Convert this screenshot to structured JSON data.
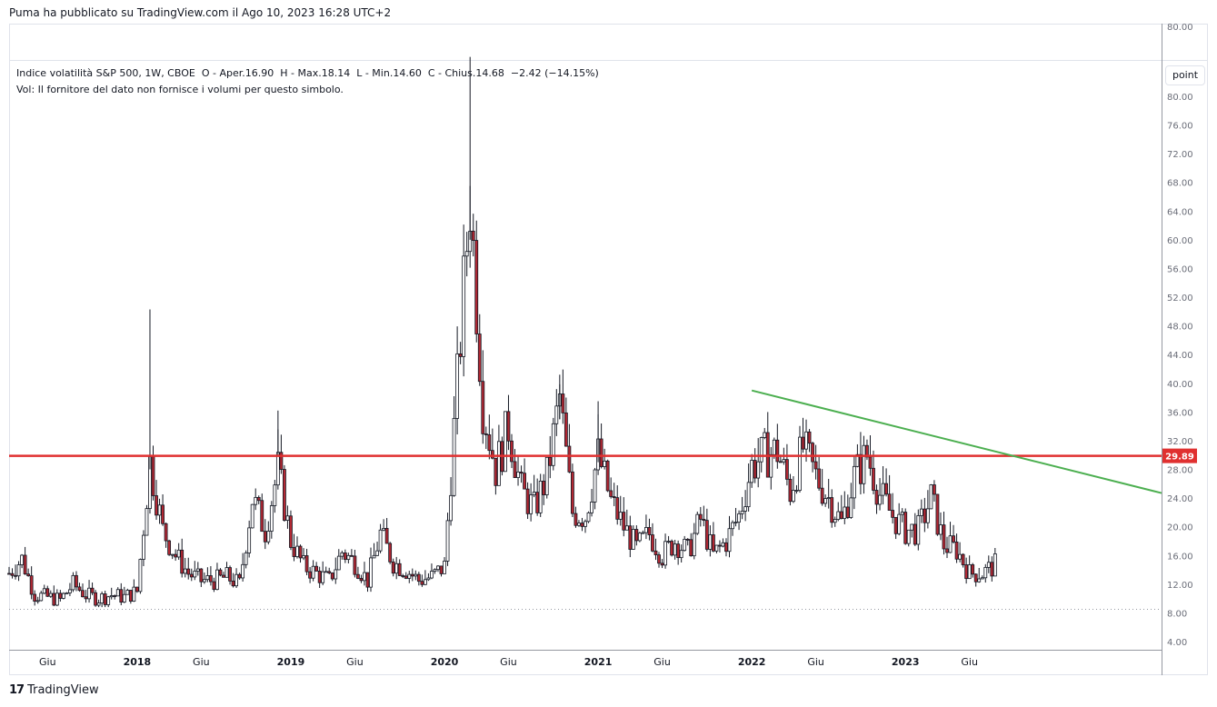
{
  "header": {
    "published_text": "Puma ha pubblicato su TradingView.com il Ago 10, 2023 16:28 UTC+2"
  },
  "legend": {
    "symbol": "Indice volatilità S&P 500, 1W, CBOE",
    "open_label": "O - Aper.",
    "open_value": "16.90",
    "high_label": "H - Max.",
    "high_value": "18.14",
    "low_label": "L - Min.",
    "low_value": "14.60",
    "close_label": "C - Chius.",
    "close_value": "14.68",
    "change": "−2.42",
    "change_pct": "(−14.15%)",
    "volume_note": "Vol: Il fornitore del dato non fornisce i volumi per questo simbolo."
  },
  "toolbar": {
    "scale_button": "point"
  },
  "footer": {
    "logo_mark": "17",
    "logo_text": "TradingView"
  },
  "colors": {
    "up": "#26a69a",
    "candle_body": "#131722",
    "down_fill": "#b22833",
    "up_fill": "#ffffff",
    "support_line": "#e03030",
    "trend_line": "#4caf50",
    "price_badge": "#e03030"
  },
  "chart_data": {
    "type": "candlestick",
    "title": "Indice volatilità S&P 500, 1W, CBOE",
    "y_axis": {
      "ticks": [
        "80.00",
        "76.00",
        "72.00",
        "68.00",
        "64.00",
        "60.00",
        "56.00",
        "52.00",
        "48.00",
        "44.00",
        "40.00",
        "36.00",
        "32.00",
        "28.00",
        "24.00",
        "20.00",
        "16.00",
        "12.00",
        "8.00",
        "4.00"
      ],
      "tick_values": [
        80,
        76,
        72,
        68,
        64,
        60,
        56,
        52,
        48,
        44,
        40,
        36,
        32,
        28,
        24,
        20,
        16,
        12,
        8,
        4
      ],
      "range": [
        4,
        80
      ]
    },
    "upper_pane_tick": "80.00",
    "x_axis": {
      "ticks": [
        {
          "label": "Giu",
          "year": false,
          "date": "2017-06"
        },
        {
          "label": "2018",
          "year": true,
          "date": "2018-01"
        },
        {
          "label": "Giu",
          "year": false,
          "date": "2018-06"
        },
        {
          "label": "2019",
          "year": true,
          "date": "2019-01"
        },
        {
          "label": "Giu",
          "year": false,
          "date": "2019-06"
        },
        {
          "label": "2020",
          "year": true,
          "date": "2020-01"
        },
        {
          "label": "Giu",
          "year": false,
          "date": "2020-06"
        },
        {
          "label": "2021",
          "year": true,
          "date": "2021-01"
        },
        {
          "label": "Giu",
          "year": false,
          "date": "2021-06"
        },
        {
          "label": "2022",
          "year": true,
          "date": "2022-01"
        },
        {
          "label": "Giu",
          "year": false,
          "date": "2022-06"
        },
        {
          "label": "2023",
          "year": true,
          "date": "2023-01"
        },
        {
          "label": "Giu",
          "year": false,
          "date": "2023-06"
        }
      ],
      "range": [
        "2017-03",
        "2024-09"
      ]
    },
    "support_level": 29.89,
    "support_label": "29.89",
    "dotted_level": 8.5,
    "trendline": {
      "start": {
        "date": "2022-01",
        "value": 39.0
      },
      "end": {
        "date": "2024-09",
        "value": 24.7
      }
    },
    "weekly_close_path": [
      [
        "2017-03",
        13.5
      ],
      [
        "2017-04",
        15.5
      ],
      [
        "2017-05",
        10.5
      ],
      [
        "2017-06",
        10.2
      ],
      [
        "2017-07",
        9.8
      ],
      [
        "2017-08",
        12.0
      ],
      [
        "2017-09",
        10.5
      ],
      [
        "2017-10",
        10.0
      ],
      [
        "2017-11",
        10.5
      ],
      [
        "2017-12",
        10.2
      ],
      [
        "2018-01",
        11.0
      ],
      [
        "2018-02",
        29.0
      ],
      [
        "2018-03",
        19.5
      ],
      [
        "2018-04",
        16.0
      ],
      [
        "2018-05",
        13.5
      ],
      [
        "2018-06",
        12.5
      ],
      [
        "2018-07",
        12.5
      ],
      [
        "2018-08",
        13.0
      ],
      [
        "2018-09",
        12.0
      ],
      [
        "2018-10",
        24.0
      ],
      [
        "2018-11",
        19.5
      ],
      [
        "2018-12",
        28.0
      ],
      [
        "2019-01",
        18.0
      ],
      [
        "2019-02",
        14.5
      ],
      [
        "2019-03",
        13.5
      ],
      [
        "2019-04",
        12.5
      ],
      [
        "2019-05",
        16.5
      ],
      [
        "2019-06",
        15.0
      ],
      [
        "2019-07",
        12.5
      ],
      [
        "2019-08",
        19.0
      ],
      [
        "2019-09",
        15.0
      ],
      [
        "2019-10",
        14.0
      ],
      [
        "2019-11",
        12.5
      ],
      [
        "2019-12",
        13.0
      ],
      [
        "2020-01",
        14.5
      ],
      [
        "2020-02",
        40.0
      ],
      [
        "2020-03",
        66.0
      ],
      [
        "2020-04",
        37.0
      ],
      [
        "2020-05",
        28.0
      ],
      [
        "2020-06",
        34.0
      ],
      [
        "2020-07",
        25.0
      ],
      [
        "2020-08",
        22.5
      ],
      [
        "2020-09",
        27.0
      ],
      [
        "2020-10",
        38.0
      ],
      [
        "2020-11",
        22.0
      ],
      [
        "2020-12",
        21.5
      ],
      [
        "2021-01",
        30.0
      ],
      [
        "2021-02",
        23.5
      ],
      [
        "2021-03",
        20.0
      ],
      [
        "2021-04",
        17.0
      ],
      [
        "2021-05",
        19.0
      ],
      [
        "2021-06",
        16.0
      ],
      [
        "2021-07",
        18.0
      ],
      [
        "2021-08",
        16.5
      ],
      [
        "2021-09",
        21.0
      ],
      [
        "2021-10",
        16.0
      ],
      [
        "2021-11",
        18.0
      ],
      [
        "2021-12",
        21.5
      ],
      [
        "2022-01",
        28.5
      ],
      [
        "2022-02",
        30.0
      ],
      [
        "2022-03",
        30.5
      ],
      [
        "2022-04",
        25.0
      ],
      [
        "2022-05",
        31.0
      ],
      [
        "2022-06",
        27.0
      ],
      [
        "2022-07",
        24.0
      ],
      [
        "2022-08",
        20.5
      ],
      [
        "2022-09",
        27.0
      ],
      [
        "2022-10",
        30.0
      ],
      [
        "2022-11",
        24.5
      ],
      [
        "2022-12",
        21.5
      ],
      [
        "2023-01",
        19.5
      ],
      [
        "2023-02",
        19.5
      ],
      [
        "2023-03",
        24.0
      ],
      [
        "2023-04",
        17.5
      ],
      [
        "2023-05",
        16.8
      ],
      [
        "2023-06",
        13.5
      ],
      [
        "2023-07",
        13.5
      ],
      [
        "2023-08",
        14.68
      ]
    ]
  }
}
